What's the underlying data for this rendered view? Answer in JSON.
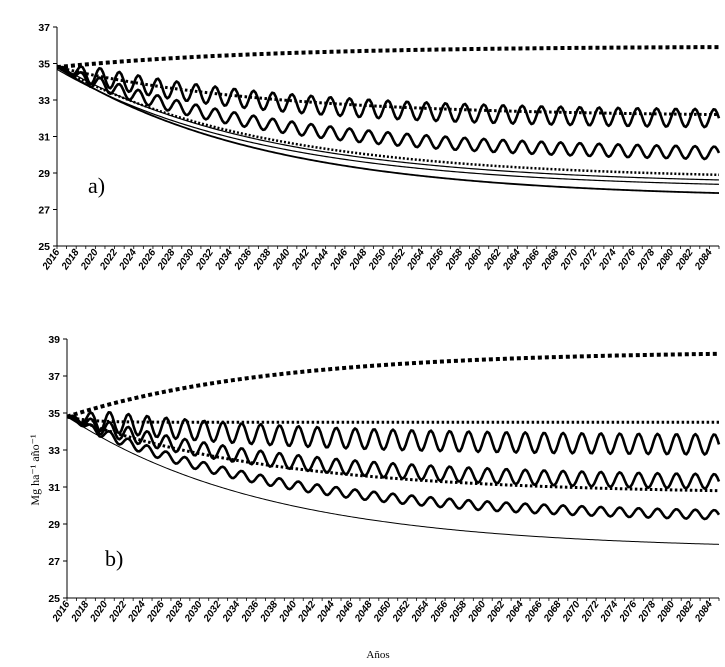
{
  "figure": {
    "ylabel": "Mg ha⁻¹ año⁻¹",
    "xlabel": "Años"
  },
  "chart_data": [
    {
      "type": "line",
      "panel_label": "a)",
      "ylim": [
        25,
        37
      ],
      "yticks": [
        25,
        27,
        29,
        31,
        33,
        35,
        37
      ],
      "xlim": [
        2016,
        2085
      ],
      "xticks": [
        2016,
        2018,
        2020,
        2022,
        2024,
        2026,
        2028,
        2030,
        2032,
        2034,
        2036,
        2038,
        2040,
        2042,
        2044,
        2046,
        2048,
        2050,
        2052,
        2054,
        2056,
        2058,
        2060,
        2062,
        2064,
        2066,
        2068,
        2070,
        2072,
        2074,
        2076,
        2078,
        2080,
        2082,
        2084
      ],
      "grid": false,
      "series": [
        {
          "style": "dotted-heavy",
          "start": 34.8,
          "end": 35.9,
          "shape": "increasing",
          "oscillation": 0
        },
        {
          "style": "wavy-bold",
          "start": 34.8,
          "end": 32.0,
          "shape": "decreasing",
          "oscillation": 0.5
        },
        {
          "style": "dotted",
          "start": 34.8,
          "end": 32.2,
          "shape": "decreasing",
          "oscillation": 0
        },
        {
          "style": "wavy-bold",
          "start": 34.8,
          "end": 30.1,
          "shape": "decreasing",
          "oscillation": 0.35
        },
        {
          "style": "dotted-small",
          "start": 34.8,
          "end": 28.9,
          "shape": "decreasing",
          "oscillation": 0
        },
        {
          "style": "double-line",
          "start": 34.8,
          "end": 28.5,
          "shape": "decreasing",
          "oscillation": 0
        },
        {
          "style": "solid",
          "start": 34.8,
          "end": 27.9,
          "shape": "decreasing",
          "oscillation": 0
        }
      ]
    },
    {
      "type": "line",
      "panel_label": "b)",
      "ylim": [
        25,
        39
      ],
      "yticks": [
        25,
        27,
        29,
        31,
        33,
        35,
        37,
        39
      ],
      "xlim": [
        2016,
        2085
      ],
      "xticks": [
        2016,
        2018,
        2020,
        2022,
        2024,
        2026,
        2028,
        2030,
        2032,
        2034,
        2036,
        2038,
        2040,
        2042,
        2044,
        2046,
        2048,
        2050,
        2052,
        2054,
        2056,
        2058,
        2060,
        2062,
        2064,
        2066,
        2068,
        2070,
        2072,
        2074,
        2076,
        2078,
        2080,
        2082,
        2084
      ],
      "grid": false,
      "series": [
        {
          "style": "dotted-heavy",
          "start": 34.8,
          "end": 38.2,
          "shape": "increasing",
          "oscillation": 0
        },
        {
          "style": "dotted",
          "start": 34.8,
          "end": 34.5,
          "shape": "flat",
          "oscillation": 0
        },
        {
          "style": "wavy-bold",
          "start": 34.8,
          "end": 33.3,
          "shape": "decreasing",
          "oscillation": 0.55
        },
        {
          "style": "wavy-bold",
          "start": 34.8,
          "end": 31.3,
          "shape": "decreasing",
          "oscillation": 0.4
        },
        {
          "style": "dotted",
          "start": 34.8,
          "end": 30.8,
          "shape": "decreasing",
          "oscillation": 0
        },
        {
          "style": "wavy-bold",
          "start": 34.8,
          "end": 29.5,
          "shape": "decreasing",
          "oscillation": 0.25
        },
        {
          "style": "solid-thin",
          "start": 34.8,
          "end": 27.9,
          "shape": "decreasing",
          "oscillation": 0
        }
      ]
    }
  ]
}
